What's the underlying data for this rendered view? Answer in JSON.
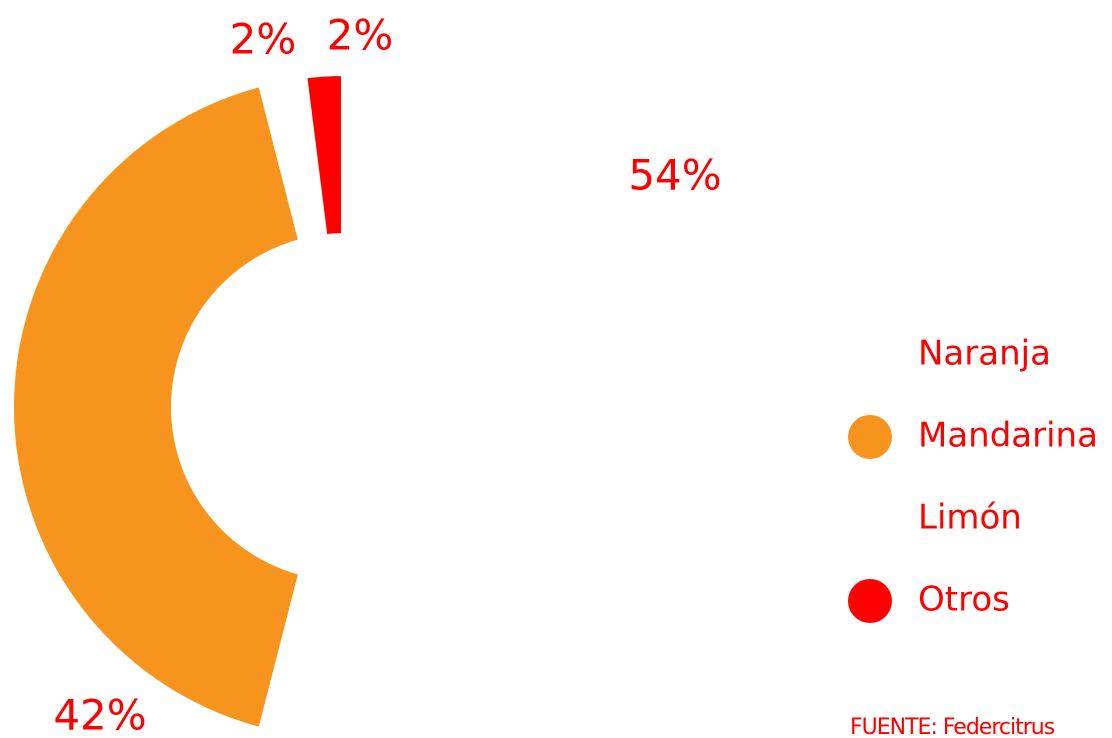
{
  "chart_data": {
    "type": "donut",
    "categories": [
      "Naranja",
      "Mandarina",
      "Limón",
      "Otros"
    ],
    "values": [
      54,
      42,
      2,
      2
    ],
    "value_labels": [
      "54%",
      "42%",
      "2%",
      "2%"
    ],
    "colors": [
      "#ffffff",
      "#f7941d",
      "#ffffff",
      "#ff0000"
    ],
    "legend": "right",
    "source": "FUENTE: Federcitrus"
  }
}
